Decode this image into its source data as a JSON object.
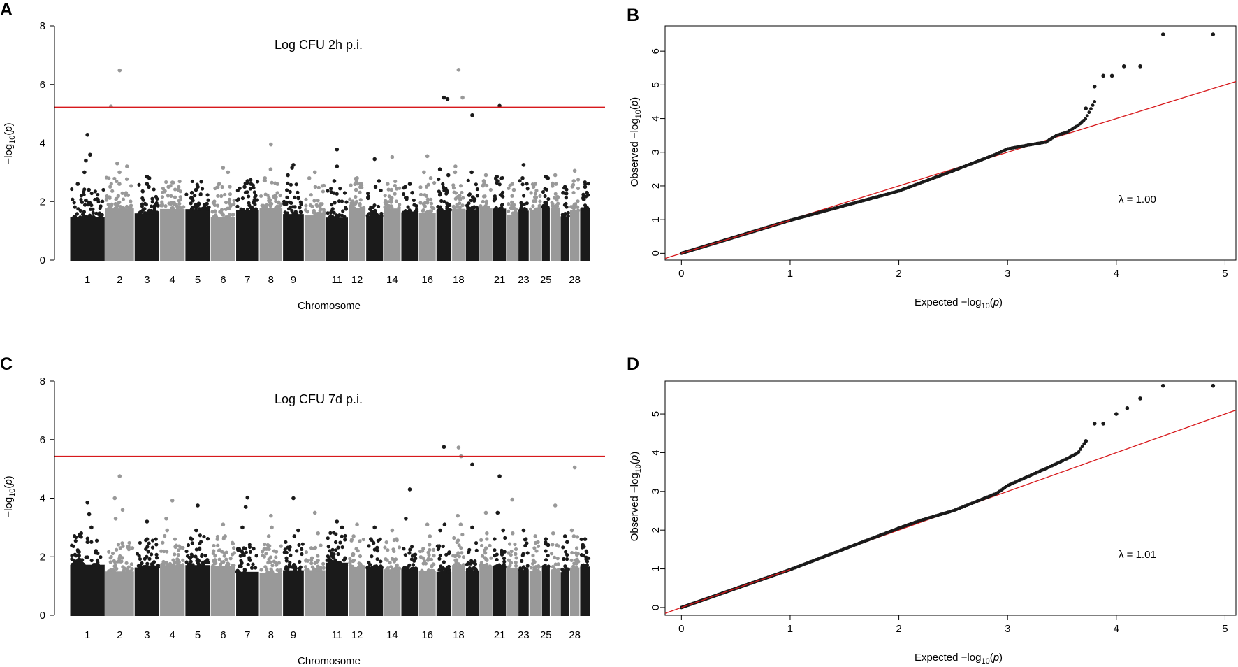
{
  "colors": {
    "dark_points": "#1a1a1a",
    "light_points": "#999999",
    "threshold_line": "#d7191c",
    "axis": "#000000",
    "background": "#ffffff"
  },
  "chart_data": [
    {
      "id": "A",
      "type": "scatter",
      "subtype": "manhattan",
      "panel_label": "A",
      "title": "Log CFU 2h p.i.",
      "xlabel": "Chromosome",
      "ylabel": "−log10(p)",
      "ylim": [
        0,
        8
      ],
      "yticks": [
        0,
        2,
        4,
        6,
        8
      ],
      "threshold": 5.22,
      "xtick_labels": [
        "1",
        "2",
        "3",
        "4",
        "5",
        "6",
        "7",
        "8",
        "9",
        "11",
        "12",
        "14",
        "16",
        "18",
        "21",
        "23",
        "25",
        "28"
      ],
      "chromosomes": [
        "1",
        "2",
        "3",
        "4",
        "5",
        "6",
        "7",
        "8",
        "9",
        "10",
        "11",
        "12",
        "13",
        "14",
        "15",
        "16",
        "17",
        "18",
        "19",
        "20",
        "21",
        "22",
        "23",
        "24",
        "25",
        "26",
        "27",
        "28",
        "29"
      ],
      "peaks": [
        {
          "chr": "1",
          "values": [
            4.28,
            3.6,
            3.4,
            3.0,
            2.6,
            2.4
          ]
        },
        {
          "chr": "2",
          "values": [
            6.48,
            5.25,
            3.3,
            3.2,
            3.0,
            2.6
          ]
        },
        {
          "chr": "3",
          "values": [
            2.85,
            2.8,
            2.6,
            2.5
          ]
        },
        {
          "chr": "4",
          "values": [
            2.65,
            2.5,
            2.4
          ]
        },
        {
          "chr": "5",
          "values": [
            2.5,
            2.4,
            2.3
          ]
        },
        {
          "chr": "6",
          "values": [
            3.15,
            3.0,
            2.6
          ]
        },
        {
          "chr": "7",
          "values": [
            2.7,
            2.6,
            2.5
          ]
        },
        {
          "chr": "8",
          "values": [
            3.95,
            3.1,
            2.8
          ]
        },
        {
          "chr": "9",
          "values": [
            3.25,
            3.15,
            2.9
          ]
        },
        {
          "chr": "10",
          "values": [
            3.0,
            2.8,
            2.5
          ]
        },
        {
          "chr": "11",
          "values": [
            3.78,
            3.2,
            2.7
          ]
        },
        {
          "chr": "12",
          "values": [
            2.8,
            2.6,
            2.4
          ]
        },
        {
          "chr": "13",
          "values": [
            3.45,
            2.7,
            2.5
          ]
        },
        {
          "chr": "14",
          "values": [
            3.52,
            2.6,
            2.4
          ]
        },
        {
          "chr": "15",
          "values": [
            2.6,
            2.5,
            2.3
          ]
        },
        {
          "chr": "16",
          "values": [
            3.55,
            3.0,
            2.8
          ]
        },
        {
          "chr": "17",
          "values": [
            5.55,
            5.5,
            3.1,
            2.9
          ]
        },
        {
          "chr": "18",
          "values": [
            6.5,
            5.55,
            3.2,
            3.0
          ]
        },
        {
          "chr": "19",
          "values": [
            4.95,
            3.0
          ]
        },
        {
          "chr": "20",
          "values": [
            2.9,
            2.7
          ]
        },
        {
          "chr": "21",
          "values": [
            5.27,
            2.85,
            2.7
          ]
        },
        {
          "chr": "22",
          "values": [
            2.6,
            2.4
          ]
        },
        {
          "chr": "23",
          "values": [
            3.25,
            2.8
          ]
        },
        {
          "chr": "24",
          "values": [
            2.6,
            2.5
          ]
        },
        {
          "chr": "25",
          "values": [
            2.85,
            2.8
          ]
        },
        {
          "chr": "26",
          "values": [
            2.9,
            2.6
          ]
        },
        {
          "chr": "27",
          "values": [
            2.5,
            2.3
          ]
        },
        {
          "chr": "28",
          "values": [
            3.05,
            2.7
          ]
        },
        {
          "chr": "29",
          "values": [
            2.5,
            2.3
          ]
        }
      ]
    },
    {
      "id": "B",
      "type": "scatter",
      "subtype": "qq",
      "panel_label": "B",
      "xlabel": "Expected −log10(p)",
      "ylabel": "Observed −log10(p)",
      "xlim": [
        -0.15,
        5.1
      ],
      "ylim": [
        -0.2,
        6.75
      ],
      "xticks": [
        0,
        1,
        2,
        3,
        4,
        5
      ],
      "yticks": [
        0,
        1,
        2,
        3,
        4,
        5,
        6
      ],
      "lambda_label": "λ = 1.00",
      "reference_line": {
        "intercept": 0,
        "slope": 1.0
      },
      "curve": [
        [
          0,
          0
        ],
        [
          1,
          0.98
        ],
        [
          2,
          1.85
        ],
        [
          2.5,
          2.45
        ],
        [
          2.9,
          2.95
        ],
        [
          3.0,
          3.1
        ],
        [
          3.2,
          3.22
        ],
        [
          3.35,
          3.3
        ],
        [
          3.45,
          3.5
        ],
        [
          3.55,
          3.6
        ],
        [
          3.65,
          3.8
        ],
        [
          3.72,
          4.0
        ],
        [
          3.8,
          4.5
        ]
      ],
      "outliers": [
        [
          3.72,
          4.3
        ],
        [
          3.8,
          4.95
        ],
        [
          3.88,
          5.27
        ],
        [
          3.96,
          5.27
        ],
        [
          4.07,
          5.55
        ],
        [
          4.22,
          5.55
        ],
        [
          4.43,
          6.5
        ],
        [
          4.89,
          6.5
        ]
      ]
    },
    {
      "id": "C",
      "type": "scatter",
      "subtype": "manhattan",
      "panel_label": "C",
      "title": "Log CFU 7d p.i.",
      "xlabel": "Chromosome",
      "ylabel": "−log10(p)",
      "ylim": [
        0,
        8
      ],
      "yticks": [
        0,
        2,
        4,
        6,
        8
      ],
      "threshold": 5.43,
      "xtick_labels": [
        "1",
        "2",
        "3",
        "4",
        "5",
        "6",
        "7",
        "8",
        "9",
        "11",
        "12",
        "14",
        "16",
        "18",
        "21",
        "23",
        "25",
        "28"
      ],
      "chromosomes": [
        "1",
        "2",
        "3",
        "4",
        "5",
        "6",
        "7",
        "8",
        "9",
        "10",
        "11",
        "12",
        "13",
        "14",
        "15",
        "16",
        "17",
        "18",
        "19",
        "20",
        "21",
        "22",
        "23",
        "24",
        "25",
        "26",
        "27",
        "28",
        "29"
      ],
      "peaks": [
        {
          "chr": "1",
          "values": [
            3.85,
            3.45,
            3.0,
            2.8
          ]
        },
        {
          "chr": "2",
          "values": [
            4.75,
            4.0,
            3.6,
            3.3
          ]
        },
        {
          "chr": "3",
          "values": [
            3.2,
            2.6
          ]
        },
        {
          "chr": "4",
          "values": [
            3.92,
            3.3,
            2.9
          ]
        },
        {
          "chr": "5",
          "values": [
            3.75,
            2.9,
            2.6
          ]
        },
        {
          "chr": "6",
          "values": [
            3.1,
            2.7
          ]
        },
        {
          "chr": "7",
          "values": [
            4.02,
            3.7,
            3.0
          ]
        },
        {
          "chr": "8",
          "values": [
            3.4,
            3.0,
            2.7
          ]
        },
        {
          "chr": "9",
          "values": [
            4.0,
            2.9,
            2.7
          ]
        },
        {
          "chr": "10",
          "values": [
            3.5,
            2.8
          ]
        },
        {
          "chr": "11",
          "values": [
            3.2,
            3.0
          ]
        },
        {
          "chr": "12",
          "values": [
            3.1,
            2.7
          ]
        },
        {
          "chr": "13",
          "values": [
            3.0,
            2.6
          ]
        },
        {
          "chr": "14",
          "values": [
            2.9,
            2.6
          ]
        },
        {
          "chr": "15",
          "values": [
            4.3,
            3.3
          ]
        },
        {
          "chr": "16",
          "values": [
            3.1,
            2.7
          ]
        },
        {
          "chr": "17",
          "values": [
            5.75,
            3.1,
            2.9
          ]
        },
        {
          "chr": "18",
          "values": [
            5.73,
            5.43,
            3.4,
            3.1
          ]
        },
        {
          "chr": "19",
          "values": [
            5.15,
            3.0
          ]
        },
        {
          "chr": "20",
          "values": [
            3.5,
            2.8
          ]
        },
        {
          "chr": "21",
          "values": [
            4.75,
            3.5,
            2.9
          ]
        },
        {
          "chr": "22",
          "values": [
            3.95,
            2.8
          ]
        },
        {
          "chr": "23",
          "values": [
            2.9,
            2.6
          ]
        },
        {
          "chr": "24",
          "values": [
            2.7,
            2.5
          ]
        },
        {
          "chr": "25",
          "values": [
            2.6,
            2.4
          ]
        },
        {
          "chr": "26",
          "values": [
            3.75,
            2.8
          ]
        },
        {
          "chr": "27",
          "values": [
            2.7,
            2.5
          ]
        },
        {
          "chr": "28",
          "values": [
            5.05,
            2.9,
            2.7
          ]
        },
        {
          "chr": "29",
          "values": [
            2.6,
            2.4
          ]
        }
      ]
    },
    {
      "id": "D",
      "type": "scatter",
      "subtype": "qq",
      "panel_label": "D",
      "xlabel": "Expected −log10(p)",
      "ylabel": "Observed −log10(p)",
      "xlim": [
        -0.15,
        5.1
      ],
      "ylim": [
        -0.2,
        5.85
      ],
      "xticks": [
        0,
        1,
        2,
        3,
        4,
        5
      ],
      "yticks": [
        0,
        1,
        2,
        3,
        4,
        5
      ],
      "lambda_label": "λ = 1.01",
      "reference_line": {
        "intercept": 0,
        "slope": 1.0
      },
      "curve": [
        [
          0,
          0
        ],
        [
          1,
          0.98
        ],
        [
          2,
          2.05
        ],
        [
          2.2,
          2.25
        ],
        [
          2.5,
          2.5
        ],
        [
          2.9,
          2.95
        ],
        [
          3.0,
          3.15
        ],
        [
          3.2,
          3.4
        ],
        [
          3.4,
          3.65
        ],
        [
          3.55,
          3.85
        ],
        [
          3.65,
          4.0
        ],
        [
          3.72,
          4.3
        ]
      ],
      "outliers": [
        [
          3.72,
          4.3
        ],
        [
          3.8,
          4.75
        ],
        [
          3.88,
          4.75
        ],
        [
          4.0,
          5.0
        ],
        [
          4.1,
          5.15
        ],
        [
          4.22,
          5.4
        ],
        [
          4.43,
          5.73
        ],
        [
          4.89,
          5.73
        ]
      ]
    }
  ]
}
